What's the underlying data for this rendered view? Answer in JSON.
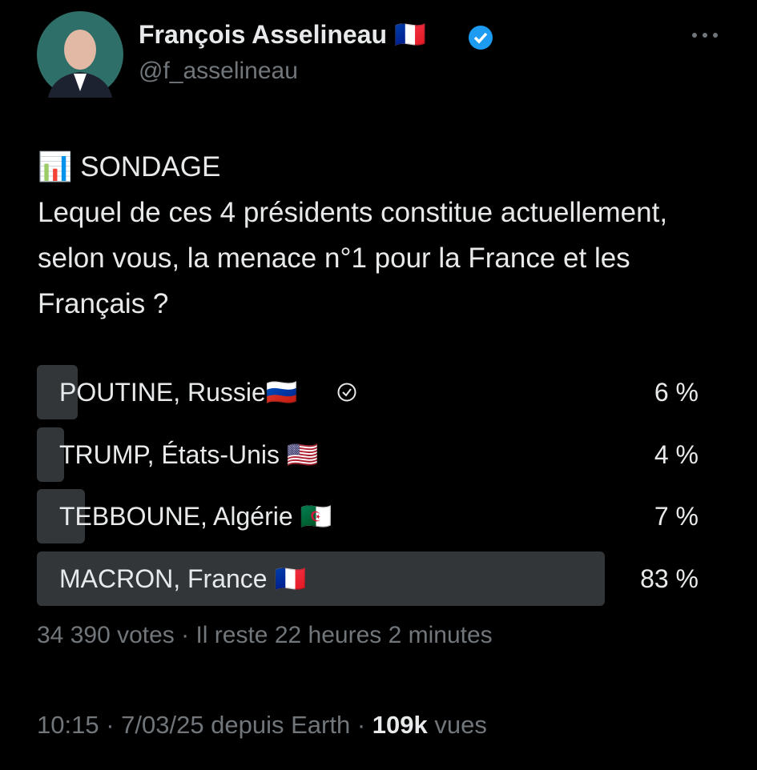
{
  "header": {
    "name": "François Asselineau 🇫🇷",
    "handle": "@f_asselineau"
  },
  "tweet": {
    "title": "📊 SONDAGE",
    "text": "Lequel de ces 4 présidents constitue actuellement, selon vous, la menace n°1 pour la France et les Français ?"
  },
  "poll": {
    "options": [
      {
        "label": "POUTINE, Russie🇷🇺",
        "percent": 6,
        "percent_label": "6 %"
      },
      {
        "label": "TRUMP, États-Unis 🇺🇸",
        "percent": 4,
        "percent_label": "4 %"
      },
      {
        "label": "TEBBOUNE, Algérie 🇩🇿",
        "percent": 7,
        "percent_label": "7 %"
      },
      {
        "label": "MACRON, France 🇫🇷",
        "percent": 83,
        "percent_label": "83 %"
      }
    ],
    "status": "34 390 votes · Il reste 22 heures 2 minutes"
  },
  "footer": {
    "meta": "10:15 · 7/03/25 depuis Earth ·",
    "views": "109k",
    "views_unit": "vues"
  }
}
